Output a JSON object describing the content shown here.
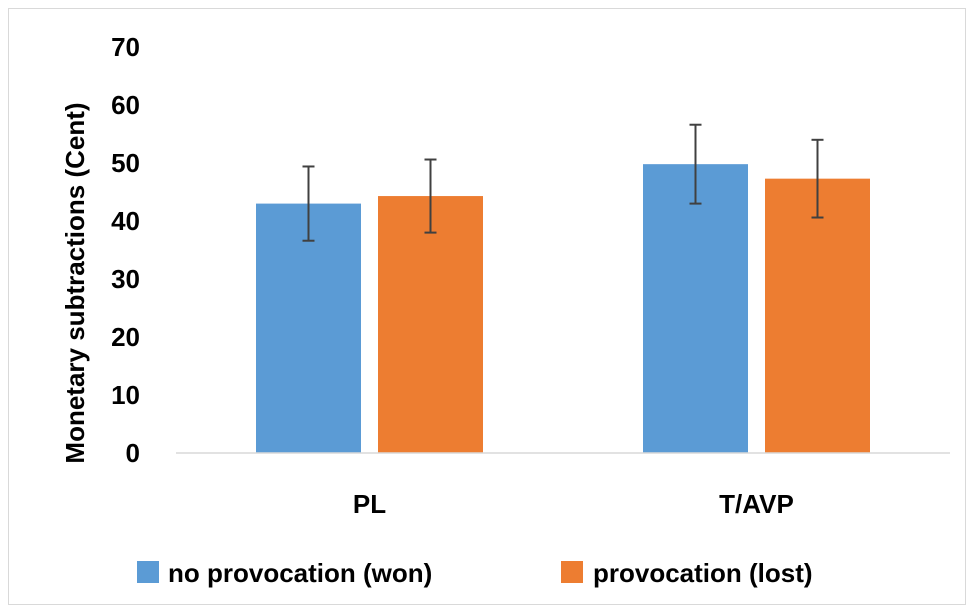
{
  "chart_data": {
    "type": "bar",
    "title": "",
    "xlabel": "",
    "ylabel": "Monetary subtractions (Cent)",
    "ylim": [
      0,
      70
    ],
    "yticks": [
      "0",
      "10",
      "20",
      "30",
      "40",
      "50",
      "60",
      "70"
    ],
    "categories": [
      "PL",
      "T/AVP"
    ],
    "series": [
      {
        "name": "no provocation (won)",
        "color": "#5b9bd5",
        "values": [
          43.0,
          49.8
        ],
        "error": [
          6.4,
          6.8
        ]
      },
      {
        "name": "provocation (lost)",
        "color": "#ed7d31",
        "values": [
          44.3,
          47.3
        ],
        "error": [
          6.3,
          6.7
        ]
      }
    ],
    "error_bar_color": "#404040",
    "grid": false,
    "legend_position": "bottom"
  }
}
